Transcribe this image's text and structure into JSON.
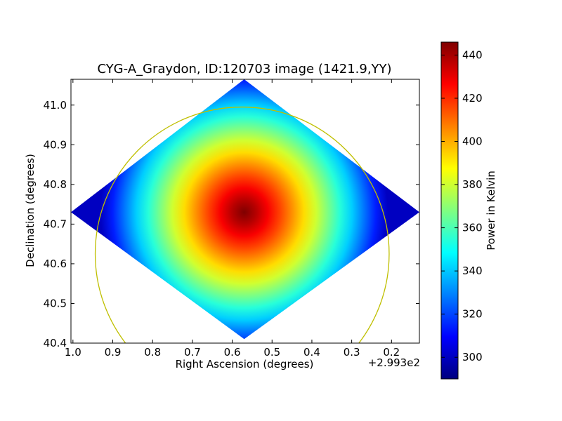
{
  "chart_data": {
    "type": "heatmap",
    "title": "CYG-A_Graydon, ID:120703 image (1421.9,YY)",
    "xlabel": "Right Ascension (degrees)",
    "ylabel": "Declination (degrees)",
    "x_offset_label": "+2.993e2",
    "x_ticks": [
      "1.0",
      "0.9",
      "0.8",
      "0.7",
      "0.6",
      "0.5",
      "0.4",
      "0.3",
      "0.2"
    ],
    "x_tick_values": [
      1.0,
      0.9,
      0.8,
      0.7,
      0.6,
      0.5,
      0.4,
      0.3,
      0.2
    ],
    "xlim": [
      1.005,
      0.13
    ],
    "y_ticks": [
      "40.4",
      "40.5",
      "40.6",
      "40.7",
      "40.8",
      "40.9",
      "41.0"
    ],
    "y_tick_values": [
      40.4,
      40.5,
      40.6,
      40.7,
      40.8,
      40.9,
      41.0
    ],
    "ylim": [
      40.4,
      41.065
    ],
    "colorbar": {
      "label": "Power in Kelvin",
      "min": 290,
      "max": 446,
      "ticks": [
        "300",
        "320",
        "340",
        "360",
        "380",
        "400",
        "420",
        "440"
      ],
      "tick_values": [
        300,
        320,
        340,
        360,
        380,
        400,
        420,
        440
      ],
      "colormap": "jet"
    },
    "map": {
      "peak_value": 446,
      "edge_value": 300,
      "center": [
        0.57,
        40.73
      ],
      "footprint_corners": [
        [
          0.57,
          41.065
        ],
        [
          0.13,
          40.73
        ],
        [
          0.57,
          40.41
        ],
        [
          1.005,
          40.73
        ]
      ]
    },
    "circle_overlay": {
      "center": [
        0.575,
        40.625
      ],
      "radius_dec_deg": 0.37,
      "color": "#bfbf00"
    },
    "grid": false,
    "colors": {
      "jet_stops": [
        "#00007f",
        "#0000ff",
        "#0080ff",
        "#00ffff",
        "#80ff80",
        "#ffff00",
        "#ff8000",
        "#ff0000",
        "#7f0000"
      ]
    }
  }
}
